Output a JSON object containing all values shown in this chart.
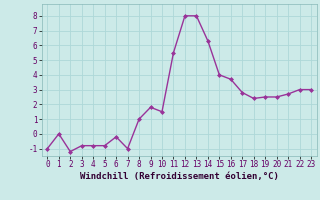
{
  "x": [
    0,
    1,
    2,
    3,
    4,
    5,
    6,
    7,
    8,
    9,
    10,
    11,
    12,
    13,
    14,
    15,
    16,
    17,
    18,
    19,
    20,
    21,
    22,
    23
  ],
  "y": [
    -1,
    0,
    -1.2,
    -0.8,
    -0.8,
    -0.8,
    -0.2,
    -1,
    1.0,
    1.8,
    1.5,
    5.5,
    8.0,
    8.0,
    6.3,
    4.0,
    3.7,
    2.8,
    2.4,
    2.5,
    2.5,
    2.7,
    3.0,
    3.0
  ],
  "line_color": "#993399",
  "marker": "D",
  "marker_size": 2,
  "linewidth": 1.0,
  "xlabel": "Windchill (Refroidissement éolien,°C)",
  "ylim": [
    -1.5,
    8.8
  ],
  "xlim": [
    -0.5,
    23.5
  ],
  "yticks": [
    -1,
    0,
    1,
    2,
    3,
    4,
    5,
    6,
    7,
    8
  ],
  "xticks": [
    0,
    1,
    2,
    3,
    4,
    5,
    6,
    7,
    8,
    9,
    10,
    11,
    12,
    13,
    14,
    15,
    16,
    17,
    18,
    19,
    20,
    21,
    22,
    23
  ],
  "grid_color": "#aed8d8",
  "bg_color": "#cceae8",
  "tick_fontsize": 5.5,
  "xlabel_fontsize": 6.5
}
